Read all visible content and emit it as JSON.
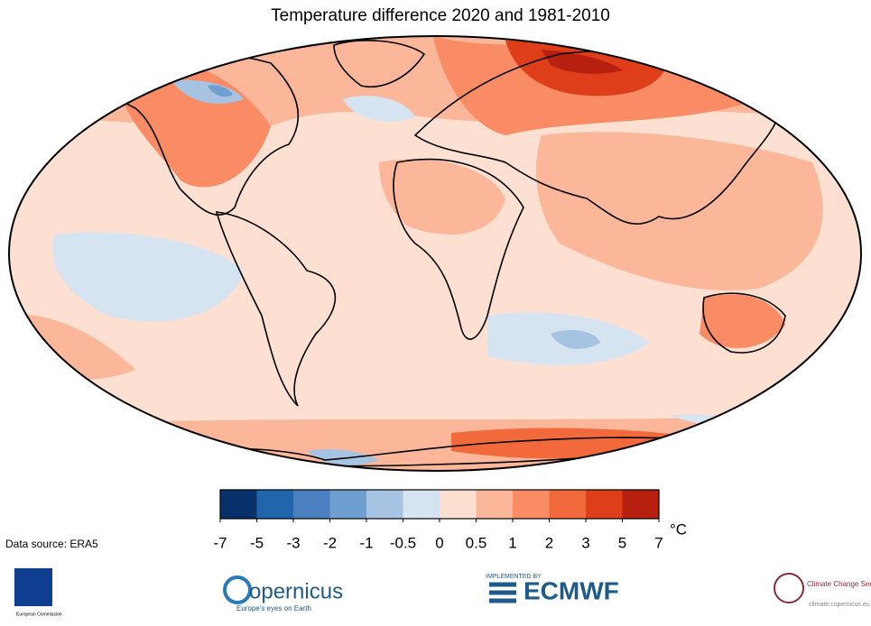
{
  "title": "Temperature difference 2020 and 1981-2010",
  "colorbar": {
    "ticks": [
      -7,
      -5,
      -3,
      -2,
      -1,
      -0.5,
      0,
      0.5,
      1,
      2,
      3,
      5,
      7
    ],
    "colors": [
      "#08306b",
      "#2166ac",
      "#4a7fc0",
      "#6f9ed1",
      "#a6c4e2",
      "#d6e4f2",
      "#fde0d2",
      "#fcb79a",
      "#f98c64",
      "#f26a3b",
      "#de3e1a",
      "#b7200f"
    ],
    "unit": "°C"
  },
  "source": "Data source: ERA5",
  "logos": {
    "ec": "European Commission",
    "copernicus": "opernicus",
    "copernicus_tagline": "Europe's eyes on Earth",
    "ecmwf_pre": "IMPLEMENTED BY",
    "ecmwf": "ECMWF",
    "c3s": "Climate Change Service",
    "c3s_url": "climate.copernicus.eu"
  }
}
